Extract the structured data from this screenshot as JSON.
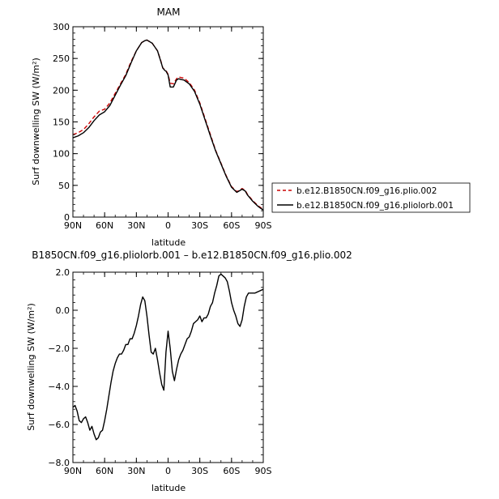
{
  "chart_data": [
    {
      "type": "line",
      "title": "MAM",
      "xlabel": "latitude",
      "ylabel": "Surf downwelling SW (W/m²)",
      "ylim": [
        0,
        300
      ],
      "xlim": [
        90,
        -90
      ],
      "x_ticks": [
        90,
        60,
        30,
        0,
        -30,
        -60,
        -90
      ],
      "x_tick_labels": [
        "90N",
        "60N",
        "30N",
        "0",
        "30S",
        "60S",
        "90S"
      ],
      "y_ticks": [
        0,
        50,
        100,
        150,
        200,
        250,
        300
      ],
      "y_tick_labels": [
        "0",
        "50",
        "100",
        "150",
        "200",
        "250",
        "300"
      ],
      "legend_position": "right",
      "series": [
        {
          "name": "b.e12.B1850CN.f09_g16.plio.002",
          "color": "#cc0000",
          "style": "dashed",
          "x": [
            90,
            85,
            80,
            75,
            70,
            65,
            60,
            55,
            50,
            45,
            40,
            35,
            30,
            25,
            22,
            20,
            15,
            10,
            7,
            5,
            3,
            2,
            0,
            -2,
            -5,
            -8,
            -10,
            -12,
            -15,
            -20,
            -25,
            -30,
            -35,
            -40,
            -45,
            -50,
            -55,
            -60,
            -65,
            -68,
            -70,
            -73,
            -75,
            -80,
            -85,
            -90
          ],
          "y": [
            130,
            133,
            138,
            147,
            158,
            167,
            170,
            180,
            195,
            210,
            225,
            245,
            262,
            275,
            278,
            279,
            274,
            262,
            247,
            235,
            232,
            231,
            225,
            211,
            210,
            218,
            221,
            220,
            219,
            212,
            200,
            180,
            155,
            130,
            105,
            85,
            65,
            48,
            40,
            43,
            45,
            42,
            36,
            26,
            18,
            12
          ]
        },
        {
          "name": "b.e12.B1850CN.f09_g16.pliolorb.001",
          "color": "#000000",
          "style": "solid",
          "x": [
            90,
            85,
            80,
            75,
            70,
            65,
            60,
            55,
            50,
            45,
            40,
            35,
            30,
            25,
            22,
            20,
            15,
            10,
            7,
            5,
            3,
            2,
            0,
            -2,
            -5,
            -8,
            -10,
            -12,
            -15,
            -20,
            -25,
            -30,
            -35,
            -40,
            -45,
            -50,
            -55,
            -60,
            -65,
            -68,
            -70,
            -73,
            -75,
            -80,
            -85,
            -90
          ],
          "y": [
            125,
            128,
            133,
            141,
            152,
            161,
            166,
            176,
            192,
            208,
            223,
            243,
            262,
            275,
            278,
            279,
            274,
            262,
            246,
            235,
            231,
            230,
            224,
            205,
            205,
            216,
            218,
            217,
            216,
            210,
            198,
            178,
            153,
            128,
            104,
            84,
            64,
            47,
            39,
            42,
            44,
            41,
            35,
            25,
            17,
            11
          ]
        }
      ]
    },
    {
      "type": "line",
      "title": "B1850CN.f09_g16.pliolorb.001 – b.e12.B1850CN.f09_g16.plio.002",
      "xlabel": "latitude",
      "ylabel": "Surf downwelling SW (W/m²)",
      "ylim": [
        -8,
        2
      ],
      "xlim": [
        90,
        -90
      ],
      "x_ticks": [
        90,
        60,
        30,
        0,
        -30,
        -60,
        -90
      ],
      "x_tick_labels": [
        "90N",
        "60N",
        "30N",
        "0",
        "30S",
        "60S",
        "90S"
      ],
      "y_ticks": [
        -8,
        -6,
        -4,
        -2,
        0,
        2
      ],
      "y_tick_labels": [
        "−8.0",
        "−6.0",
        "−4.0",
        "−2.0",
        "0.0",
        "2.0"
      ],
      "series": [
        {
          "color": "#000000",
          "style": "solid",
          "x": [
            90,
            88,
            86,
            84,
            82,
            80,
            78,
            76,
            74,
            72,
            70,
            68,
            66,
            64,
            62,
            60,
            58,
            56,
            54,
            52,
            50,
            48,
            46,
            44,
            42,
            40,
            38,
            36,
            34,
            32,
            30,
            28,
            26,
            24,
            22,
            20,
            18,
            16,
            14,
            12,
            10,
            8,
            6,
            4,
            2,
            0,
            -2,
            -4,
            -6,
            -8,
            -10,
            -12,
            -14,
            -16,
            -18,
            -20,
            -22,
            -24,
            -26,
            -28,
            -30,
            -32,
            -34,
            -36,
            -38,
            -40,
            -42,
            -44,
            -46,
            -48,
            -50,
            -52,
            -54,
            -56,
            -58,
            -60,
            -62,
            -64,
            -66,
            -68,
            -70,
            -72,
            -74,
            -76,
            -78,
            -80,
            -82,
            -84,
            -86,
            -88,
            -90
          ],
          "y": [
            -5.1,
            -5.0,
            -5.3,
            -5.8,
            -5.9,
            -5.7,
            -5.6,
            -5.9,
            -6.3,
            -6.1,
            -6.5,
            -6.8,
            -6.7,
            -6.4,
            -6.3,
            -5.8,
            -5.2,
            -4.5,
            -3.8,
            -3.2,
            -2.8,
            -2.5,
            -2.3,
            -2.3,
            -2.1,
            -1.8,
            -1.8,
            -1.5,
            -1.5,
            -1.2,
            -0.8,
            -0.3,
            0.3,
            0.7,
            0.5,
            -0.3,
            -1.3,
            -2.2,
            -2.3,
            -2.0,
            -2.6,
            -3.3,
            -3.9,
            -4.2,
            -2.2,
            -1.1,
            -2.0,
            -3.2,
            -3.7,
            -3.1,
            -2.6,
            -2.3,
            -2.1,
            -1.8,
            -1.5,
            -1.4,
            -1.1,
            -0.7,
            -0.6,
            -0.5,
            -0.3,
            -0.6,
            -0.4,
            -0.4,
            -0.2,
            0.2,
            0.4,
            0.9,
            1.3,
            1.8,
            1.9,
            1.8,
            1.7,
            1.5,
            1.0,
            0.4,
            0.0,
            -0.3,
            -0.7,
            -0.85,
            -0.5,
            0.2,
            0.7,
            0.9,
            0.9,
            0.9,
            0.9,
            0.95,
            1.0,
            1.05,
            1.1
          ]
        }
      ]
    }
  ]
}
